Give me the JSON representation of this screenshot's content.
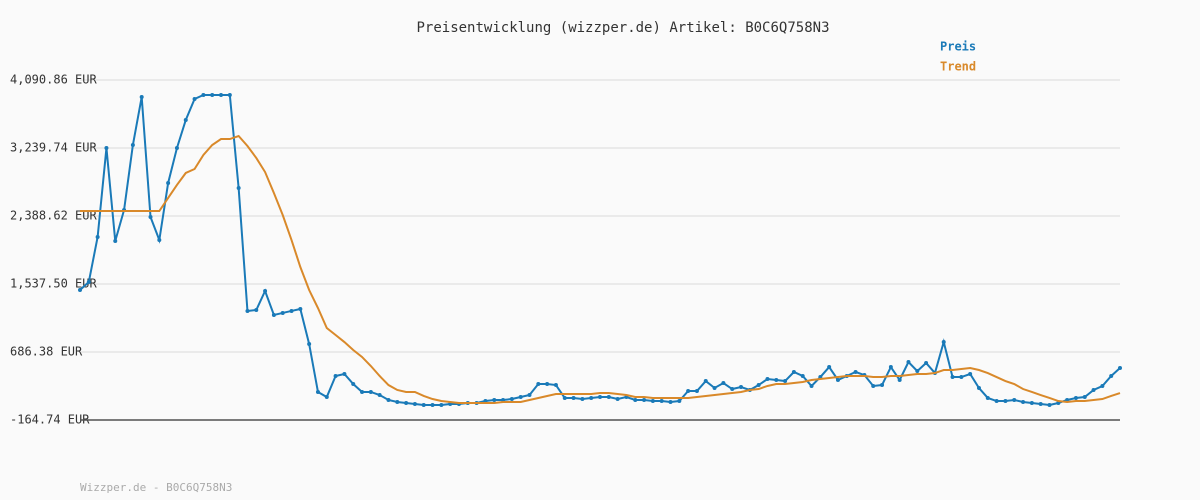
{
  "chart_data": {
    "type": "line",
    "title": "Preisentwicklung (wizzper.de) Artikel: B0C6Q758N3",
    "footer": "Wizzper.de - B0C6Q758N3",
    "ylim": [
      -164.74,
      4090.86
    ],
    "yticks": [
      {
        "value": -164.74,
        "label": "-164.74 EUR"
      },
      {
        "value": 686.38,
        "label": "686.38 EUR"
      },
      {
        "value": 1537.5,
        "label": "1,537.50 EUR"
      },
      {
        "value": 2388.62,
        "label": "2,388.62 EUR"
      },
      {
        "value": 3239.74,
        "label": "3,239.74 EUR"
      },
      {
        "value": 4090.86,
        "label": "4,090.86 EUR"
      }
    ],
    "grid": true,
    "legend": "top-right",
    "series": [
      {
        "name": "Preis",
        "color": "#1a7ab8",
        "markers": true,
        "values": [
          1462,
          1563,
          2126,
          3240,
          2076,
          2464,
          3277,
          3878,
          2376,
          2088,
          2802,
          3240,
          3590,
          3853,
          3903,
          3903,
          3903,
          3903,
          2739,
          1200,
          1212,
          1450,
          1150,
          1175,
          1200,
          1225,
          787,
          186,
          123,
          386,
          411,
          286,
          186,
          186,
          148,
          86,
          61,
          48,
          36,
          23,
          23,
          23,
          36,
          36,
          48,
          48,
          73,
          86,
          86,
          98,
          123,
          148,
          286,
          286,
          273,
          111,
          111,
          98,
          111,
          123,
          123,
          98,
          123,
          86,
          86,
          73,
          73,
          61,
          73,
          198,
          198,
          323,
          236,
          298,
          223,
          248,
          211,
          273,
          348,
          336,
          323,
          436,
          386,
          261,
          373,
          498,
          336,
          386,
          436,
          398,
          261,
          273,
          498,
          336,
          561,
          448,
          549,
          423,
          812,
          373,
          373,
          411,
          236,
          111,
          73,
          73,
          86,
          61,
          48,
          36,
          23,
          48,
          86,
          111,
          123,
          211,
          261,
          386,
          486
        ]
      },
      {
        "name": "Trend",
        "color": "#d9892a",
        "markers": false,
        "values": [
          2451,
          2451,
          2451,
          2451,
          2451,
          2451,
          2451,
          2451,
          2451,
          2451,
          2614,
          2777,
          2927,
          2977,
          3152,
          3277,
          3352,
          3352,
          3390,
          3265,
          3115,
          2939,
          2677,
          2401,
          2088,
          1750,
          1462,
          1237,
          987,
          899,
          811,
          711,
          624,
          511,
          386,
          273,
          211,
          186,
          186,
          136,
          98,
          73,
          61,
          48,
          48,
          48,
          48,
          48,
          61,
          61,
          61,
          86,
          111,
          136,
          161,
          161,
          161,
          161,
          161,
          173,
          173,
          161,
          148,
          123,
          123,
          111,
          111,
          111,
          111,
          111,
          123,
          136,
          148,
          161,
          173,
          186,
          211,
          223,
          261,
          286,
          286,
          298,
          311,
          336,
          348,
          361,
          373,
          386,
          386,
          386,
          373,
          373,
          386,
          386,
          398,
          411,
          411,
          423,
          461,
          461,
          473,
          486,
          461,
          423,
          373,
          323,
          286,
          223,
          186,
          148,
          111,
          73,
          61,
          73,
          73,
          86,
          98,
          136,
          173
        ]
      }
    ]
  }
}
